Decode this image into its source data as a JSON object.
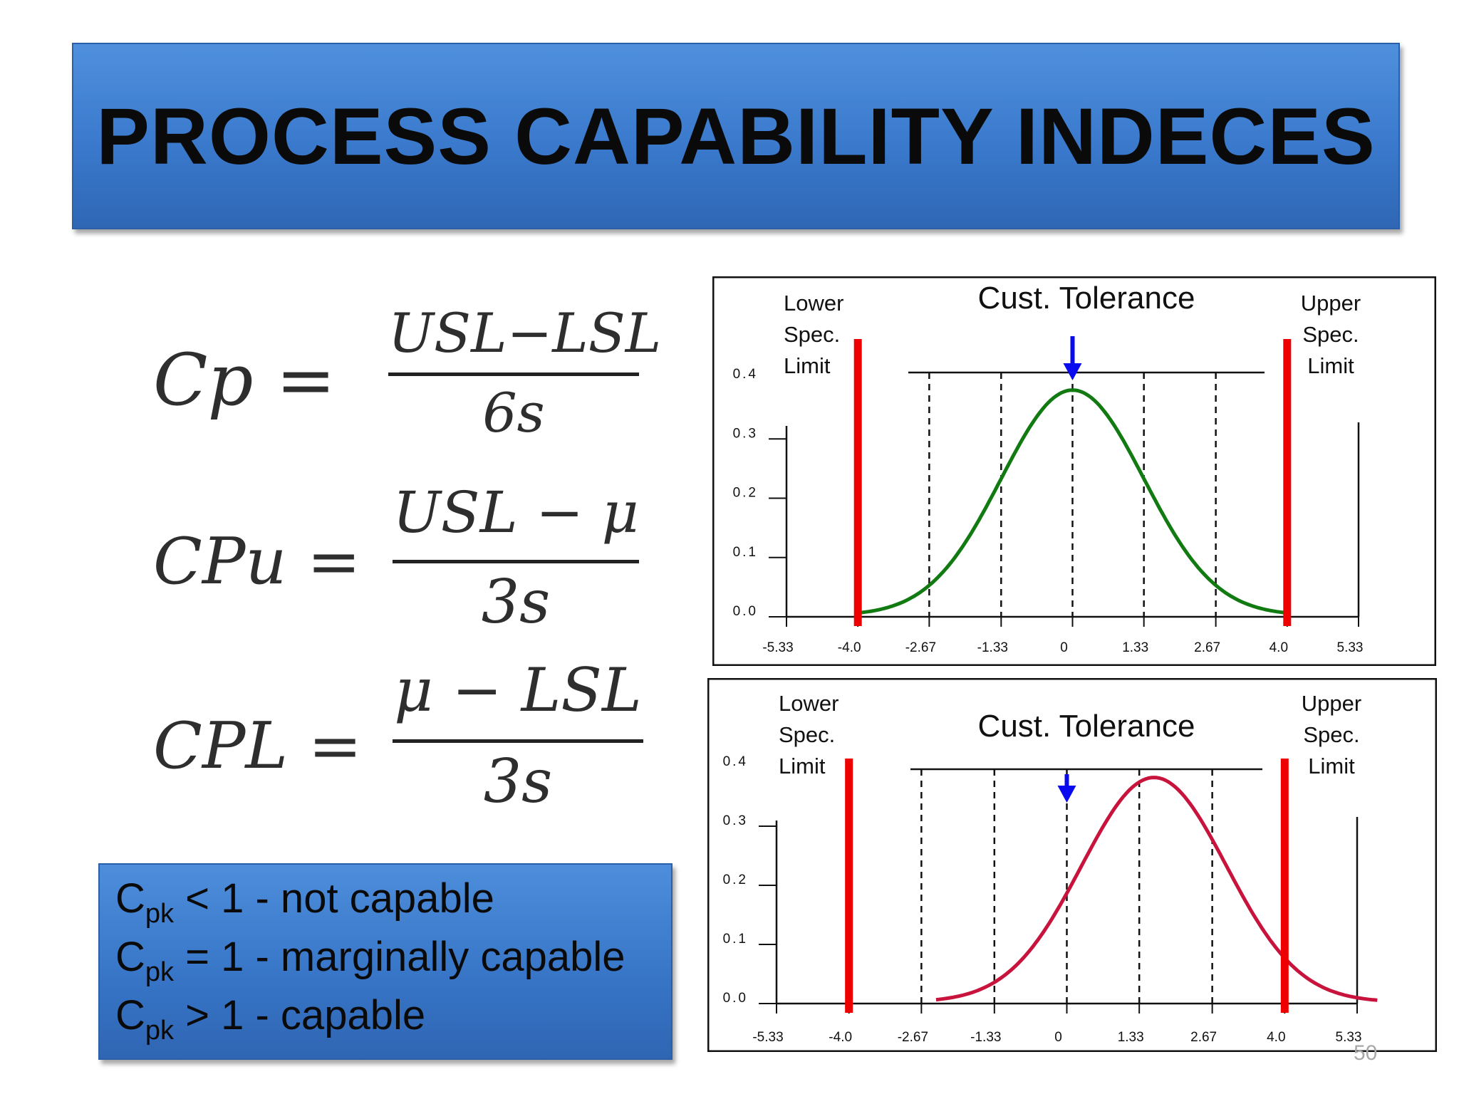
{
  "slide": {
    "title": "PROCESS CAPABILITY INDECES",
    "page_number": "50"
  },
  "formulas": [
    {
      "lhs": "Cp =",
      "numerator": "USL−LSL",
      "denominator": "6s"
    },
    {
      "lhs": "CPu =",
      "numerator": "USL − μ",
      "denominator": "3s"
    },
    {
      "lhs": "CPL =",
      "numerator": "μ − LSL",
      "denominator": "3s"
    }
  ],
  "legend": [
    {
      "base": "C",
      "sub": "pk",
      "text": " < 1 - not capable"
    },
    {
      "base": "C",
      "sub": "pk",
      "text": " = 1 - marginally capable"
    },
    {
      "base": "C",
      "sub": "pk",
      "text": " > 1 - capable"
    }
  ],
  "chart_data": [
    {
      "type": "line",
      "labels": {
        "tolerance": "Cust. Tolerance",
        "lower_spec": [
          "Lower",
          "Spec.",
          "Limit"
        ],
        "upper_spec": [
          "Upper",
          "Spec.",
          "Limit"
        ]
      },
      "x_ticks": [
        "-5.33",
        "-4.0",
        "-2.67",
        "-1.33",
        "0",
        "1.33",
        "2.67",
        "4.0",
        "5.33"
      ],
      "y_ticks": [
        "0.0",
        "0.1",
        "0.2",
        "0.3",
        "0.4"
      ],
      "xlim": [
        -5.33,
        5.33
      ],
      "ylim": [
        0,
        0.4
      ],
      "lsl": -4.0,
      "usl": 4.0,
      "target": 0,
      "dashed_lines": [
        -2.67,
        -1.33,
        0,
        1.33,
        2.67
      ],
      "series": [
        {
          "mean": 0,
          "sd": 1.33,
          "peak": 0.38,
          "x_range": [
            -4.0,
            4.0
          ],
          "color": "#117a11"
        }
      ],
      "spec_color": "#ee0000",
      "arrow_color": "#0a0aee"
    },
    {
      "type": "line",
      "labels": {
        "tolerance": "Cust. Tolerance",
        "lower_spec": [
          "Lower",
          "Spec.",
          "Limit"
        ],
        "upper_spec": [
          "Upper",
          "Spec.",
          "Limit"
        ]
      },
      "x_ticks": [
        "-5.33",
        "-4.0",
        "-2.67",
        "-1.33",
        "0",
        "1.33",
        "2.67",
        "4.0",
        "5.33"
      ],
      "y_ticks": [
        "0.0",
        "0.1",
        "0.2",
        "0.3",
        "0.4"
      ],
      "xlim": [
        -5.33,
        5.33
      ],
      "ylim": [
        0,
        0.4
      ],
      "lsl": -4.0,
      "usl": 4.0,
      "target": 0,
      "dashed_lines": [
        -2.67,
        -1.33,
        0,
        1.33,
        2.67
      ],
      "series": [
        {
          "mean": 1.6,
          "sd": 1.33,
          "peak": 0.38,
          "x_range": [
            -2.4,
            5.7
          ],
          "color": "#c8143c"
        }
      ],
      "spec_color": "#ee0000",
      "arrow_color": "#0a0aee"
    }
  ]
}
